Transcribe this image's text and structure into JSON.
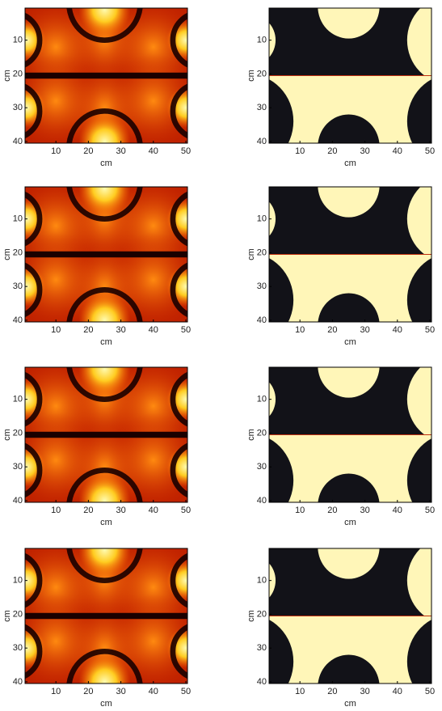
{
  "chart_data": [
    {
      "type": "heatmap",
      "xlabel": "cm",
      "ylabel": "cm",
      "xlim": [
        0.5,
        50.5
      ],
      "ylim": [
        0.5,
        40.5
      ],
      "y_reversed": true,
      "xticks": [
        10,
        20,
        30,
        40,
        50
      ],
      "yticks": [
        10,
        20,
        30,
        40
      ]
    },
    {
      "type": "heatmap",
      "xlabel": "cm",
      "ylabel": "cm",
      "xlim": [
        0.5,
        50.5
      ],
      "ylim": [
        0.5,
        40.5
      ],
      "y_reversed": true,
      "xticks": [
        10,
        20,
        30,
        40,
        50
      ],
      "yticks": [
        10,
        20,
        30,
        40
      ]
    },
    {
      "type": "heatmap",
      "xlabel": "cm",
      "ylabel": "cm",
      "xlim": [
        0.5,
        50.5
      ],
      "ylim": [
        0.5,
        40.5
      ],
      "y_reversed": true,
      "xticks": [
        10,
        20,
        30,
        40,
        50
      ],
      "yticks": [
        10,
        20,
        30,
        40
      ]
    },
    {
      "type": "heatmap",
      "xlabel": "cm",
      "ylabel": "cm",
      "xlim": [
        0.5,
        50.5
      ],
      "ylim": [
        0.5,
        40.5
      ],
      "y_reversed": true,
      "xticks": [
        10,
        20,
        30,
        40,
        50
      ],
      "yticks": [
        10,
        20,
        30,
        40
      ]
    },
    {
      "type": "heatmap",
      "xlabel": "cm",
      "ylabel": "cm",
      "xlim": [
        0.5,
        50.5
      ],
      "ylim": [
        0.5,
        40.5
      ],
      "y_reversed": true,
      "xticks": [
        10,
        20,
        30,
        40,
        50
      ],
      "yticks": [
        10,
        20,
        30,
        40
      ]
    },
    {
      "type": "heatmap",
      "xlabel": "cm",
      "ylabel": "cm",
      "xlim": [
        0.5,
        50.5
      ],
      "ylim": [
        0.5,
        40.5
      ],
      "y_reversed": true,
      "xticks": [
        10,
        20,
        30,
        40,
        50
      ],
      "yticks": [
        10,
        20,
        30,
        40
      ]
    },
    {
      "type": "heatmap",
      "xlabel": "cm",
      "ylabel": "cm",
      "xlim": [
        0.5,
        50.5
      ],
      "ylim": [
        0.5,
        40.5
      ],
      "y_reversed": true,
      "xticks": [
        10,
        20,
        30,
        40,
        50
      ],
      "yticks": [
        10,
        20,
        30,
        40
      ]
    },
    {
      "type": "heatmap",
      "xlabel": "cm",
      "ylabel": "cm",
      "xlim": [
        0.5,
        50.5
      ],
      "ylim": [
        0.5,
        40.5
      ],
      "y_reversed": true,
      "xticks": [
        10,
        20,
        30,
        40,
        50
      ],
      "yticks": [
        10,
        20,
        30,
        40
      ]
    }
  ]
}
